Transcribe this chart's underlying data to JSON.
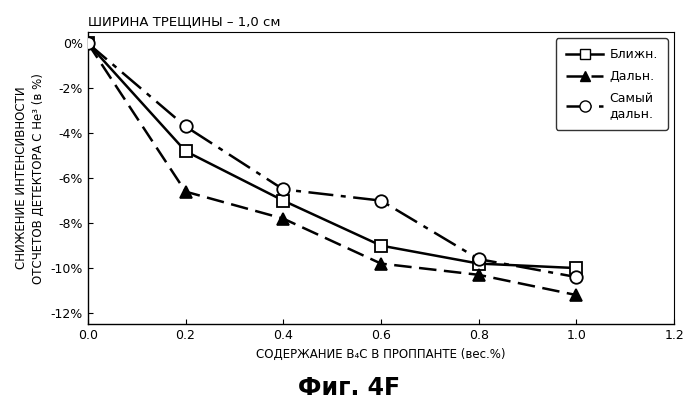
{
  "title_top": "ШИРИНА ТРЕЩИНЫ – 1,0 см",
  "xlabel": "СОДЕРЖАНИЕ B₄C В ПРОППАНТЕ (вес.%)",
  "ylabel": "СНИЖЕНИЕ ИНТЕНСИВНОСТИ\nОТСЧЕТОВ ДЕТЕКТОРА С He³ (в %)",
  "fig_label": "Фиг. 4F",
  "xlim": [
    0.0,
    1.2
  ],
  "ylim": [
    -12.5,
    0.5
  ],
  "xticks": [
    0.0,
    0.2,
    0.4,
    0.6,
    0.8,
    1.0,
    1.2
  ],
  "yticks": [
    0,
    -2,
    -4,
    -6,
    -8,
    -10,
    -12
  ],
  "x": [
    0.0,
    0.2,
    0.4,
    0.6,
    0.8,
    1.0
  ],
  "blizhn": [
    0.0,
    -4.8,
    -7.0,
    -9.0,
    -9.8,
    -10.0
  ],
  "daln": [
    0.0,
    -6.6,
    -7.8,
    -9.8,
    -10.3,
    -11.2
  ],
  "samyi_daln": [
    0.0,
    -3.7,
    -6.5,
    -7.0,
    -9.6,
    -10.4
  ],
  "legend_labels": [
    "Ближн.",
    "Дальн.",
    "Самый\nдальн."
  ],
  "lw": 1.8
}
